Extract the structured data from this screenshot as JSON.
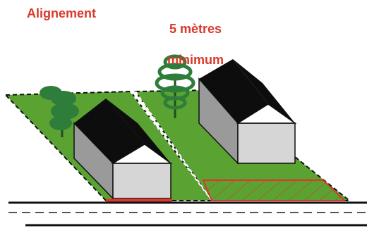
{
  "labels": {
    "left": "Alignement",
    "right_line1": "5 mètres",
    "right_line2": "minimum"
  },
  "colors": {
    "label_red": "#d9382a",
    "grass": "#5aa333",
    "grass_dark": "#2f6b1f",
    "tree": "#2f7d3a",
    "house_wall": "#cfcfcf",
    "house_side": "#9a9a9a",
    "roof": "#0d0d0d",
    "hatch": "#d9382a",
    "road_line": "#111111"
  },
  "scene": {
    "left_plot": "house-on-alignment",
    "right_plot": "house-set-back",
    "hatched_zone": "setback-area"
  }
}
